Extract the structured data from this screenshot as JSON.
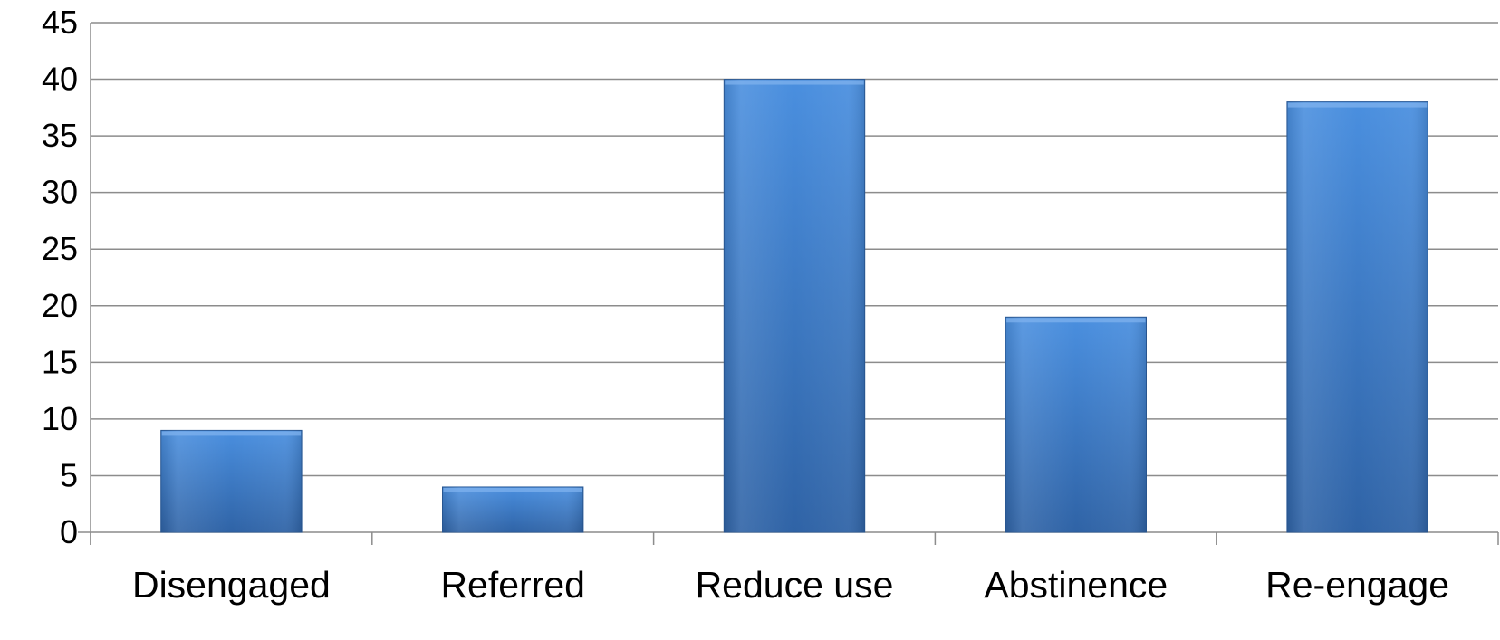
{
  "chart_data": {
    "type": "bar",
    "title": "",
    "xlabel": "",
    "ylabel": "",
    "categories": [
      "Disengaged",
      "Referred",
      "Reduce use",
      "Abstinence",
      "Re-engage"
    ],
    "values": [
      9,
      4,
      40,
      19,
      38
    ],
    "ylim": [
      0,
      45
    ],
    "yticks": [
      "0",
      "5",
      "10",
      "15",
      "20",
      "25",
      "30",
      "35",
      "40",
      "45"
    ],
    "grid": true,
    "legend": "none",
    "colors": {
      "bar_top": "#4a8fdf",
      "bar_bottom": "#2f63a6",
      "bar_edge": "#2a5a98",
      "grid": "#8c8c8c",
      "axis": "#8c8c8c"
    }
  }
}
